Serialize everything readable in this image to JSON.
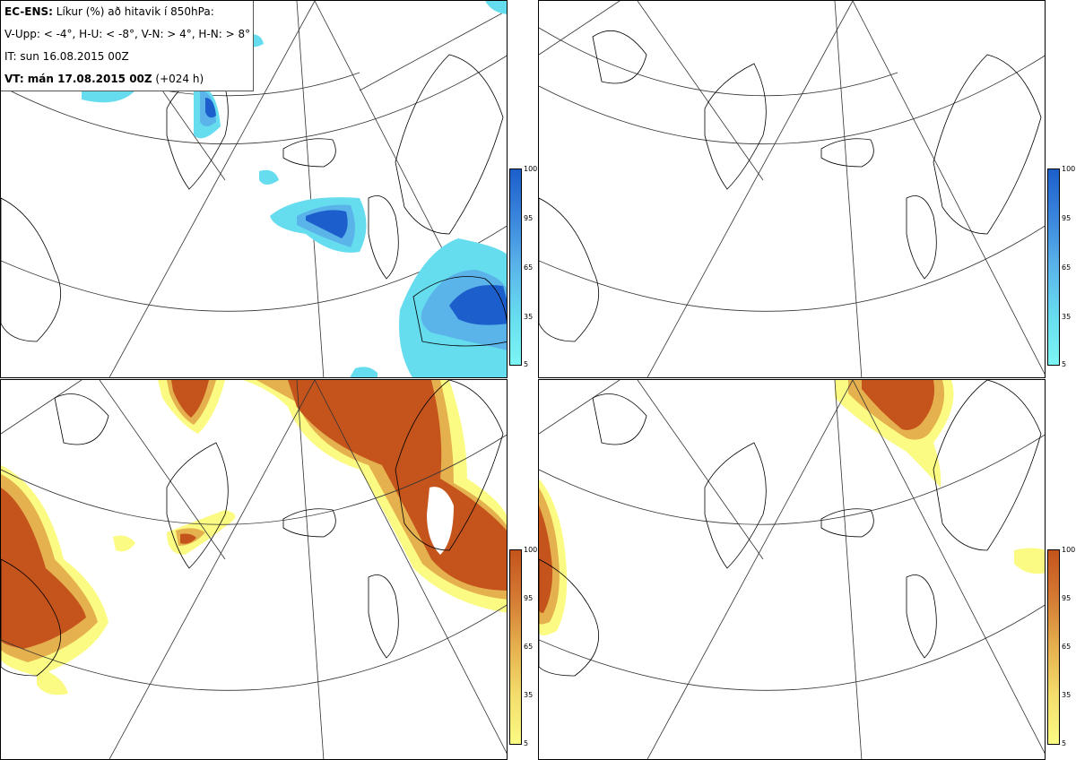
{
  "header": {
    "product": "EC-ENS:",
    "title_rest": " Líkur (%) að hitavik í 850hPa:",
    "classes": "V-Upp: < -4°, H-U: < -8°, V-N: > 4°, H-N: > 8°",
    "init": "IT: sun 16.08.2015 00Z",
    "valid": "VT: mán 17.08.2015 00Z",
    "lead": " (+024 h)"
  },
  "colorbars": {
    "cold": {
      "ticks": [
        "100",
        "95",
        "65",
        "35",
        "5"
      ],
      "colors": [
        "#1c5fcc",
        "#3a86dc",
        "#5ab4ea",
        "#66dcef",
        "#7cf6f4"
      ]
    },
    "warm": {
      "ticks": [
        "100",
        "95",
        "65",
        "35",
        "5"
      ],
      "colors": [
        "#c4541c",
        "#d47a34",
        "#e5b04e",
        "#f4dd6c",
        "#fbfb84"
      ]
    }
  },
  "panels": [
    {
      "id": "top-left",
      "name": "cold-below-minus4"
    },
    {
      "id": "top-right",
      "name": "cold-below-minus8"
    },
    {
      "id": "bottom-left",
      "name": "warm-above-4"
    },
    {
      "id": "bottom-right",
      "name": "warm-above-8"
    }
  ]
}
